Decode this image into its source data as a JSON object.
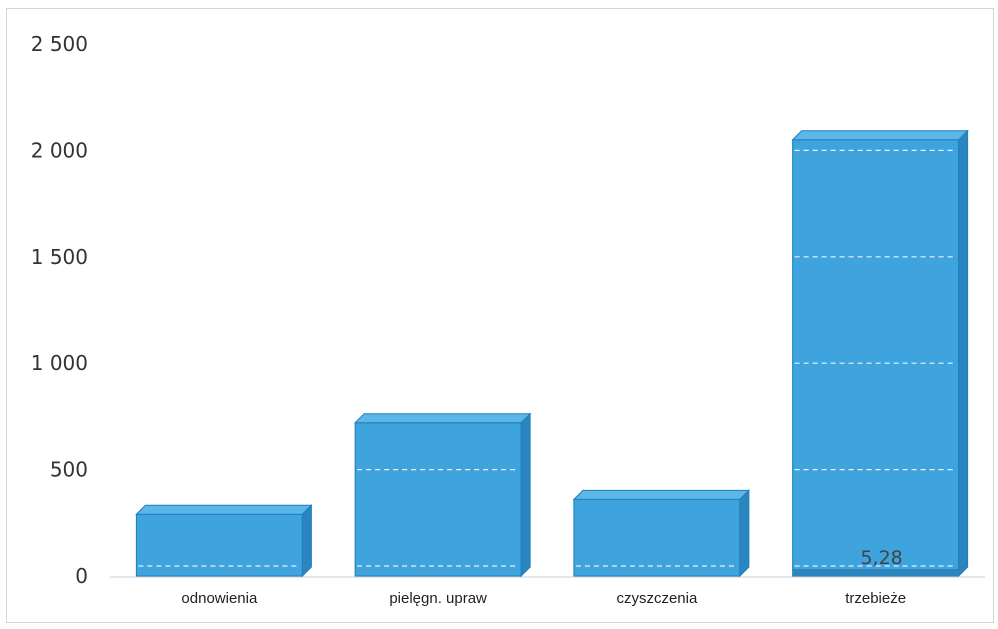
{
  "chart_data": {
    "type": "bar",
    "categories": [
      "odnowienia",
      "pielęgn. upraw",
      "czyszczenia",
      "trzebieże"
    ],
    "values": [
      290,
      720,
      360,
      2050
    ],
    "ylim": [
      0,
      2500
    ],
    "yticks": [
      0,
      500,
      1000,
      1500,
      2000,
      2500
    ],
    "ytick_labels": [
      "0",
      "500",
      "1 000",
      "1 500",
      "2 000",
      "2 500"
    ],
    "data_labels": [
      {
        "category": "trzebieże",
        "text": "5,28"
      }
    ],
    "bar_color": "#3fa4dd",
    "grid": false
  }
}
